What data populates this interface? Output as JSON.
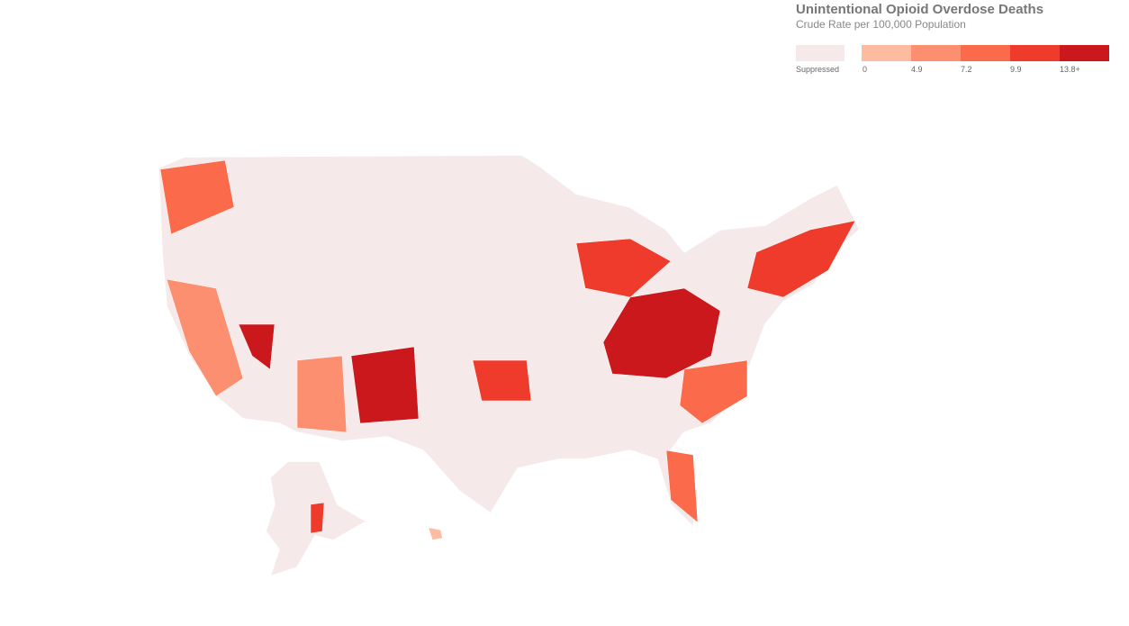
{
  "legend": {
    "title": "Unintentional Opioid Overdose Deaths",
    "subtitle": "Crude Rate per 100,000 Population",
    "suppressed_label": "Suppressed",
    "suppressed_color": "#f5e9e9",
    "breaks": [
      0,
      4.9,
      7.2,
      9.9,
      {
        "value": 13.8,
        "label": "13.8+"
      }
    ],
    "colors": [
      "#fdbba0",
      "#fc8f6f",
      "#fb6a4a",
      "#ef3b2c",
      "#cb181d"
    ]
  }
}
